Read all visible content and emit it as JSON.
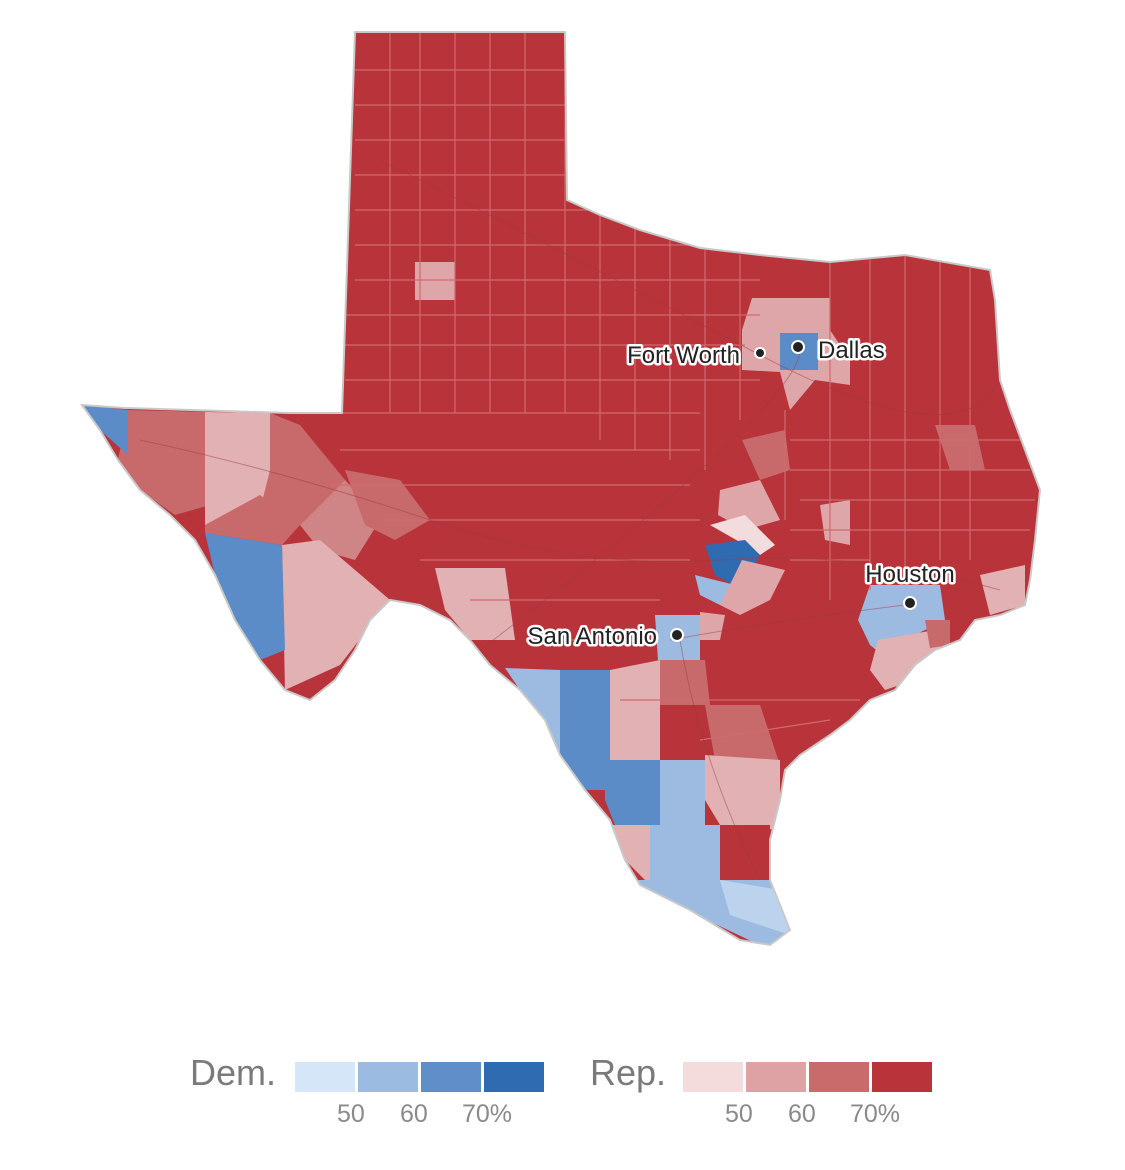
{
  "map": {
    "cities": [
      {
        "id": "fort-worth",
        "label": "Fort Worth"
      },
      {
        "id": "dallas",
        "label": "Dallas"
      },
      {
        "id": "houston",
        "label": "Houston"
      },
      {
        "id": "san-antonio",
        "label": "San Antonio"
      }
    ],
    "colors": {
      "rep_base": "#b8343a",
      "rep_mid": "#c86a6c",
      "rep_light": "#dea6a8",
      "rep_faint": "#f2dcdd",
      "dem_faint": "#cfe1f4",
      "dem_light": "#9dbbe0",
      "dem_mid": "#5b8cc8",
      "dem_strong": "#2f6bb0",
      "county_line": "#d06a6e",
      "outline": "#c9c9c9"
    }
  },
  "legend": {
    "dem": {
      "title": "Dem.",
      "colors": [
        "#d4e6f7",
        "#9bbbe0",
        "#5f8ec9",
        "#2f6bb0"
      ],
      "ticks": [
        "50",
        "60",
        "70%"
      ]
    },
    "rep": {
      "title": "Rep.",
      "colors": [
        "#f4dcdd",
        "#dfa2a4",
        "#c96b6b",
        "#b8343a"
      ],
      "ticks": [
        "50",
        "60",
        "70%"
      ]
    }
  }
}
